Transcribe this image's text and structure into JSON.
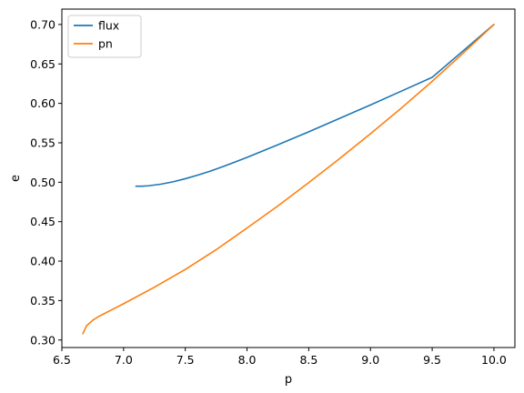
{
  "chart_data": {
    "type": "line",
    "xlabel": "p",
    "ylabel": "e",
    "xlim": [
      6.5,
      10.17
    ],
    "ylim": [
      0.2905,
      0.7195
    ],
    "xticks": [
      "6.5",
      "7.0",
      "7.5",
      "8.0",
      "8.5",
      "9.0",
      "9.5",
      "10.0"
    ],
    "xtick_values": [
      6.5,
      7.0,
      7.5,
      8.0,
      8.5,
      9.0,
      9.5,
      10.0
    ],
    "yticks": [
      "0.30",
      "0.35",
      "0.40",
      "0.45",
      "0.50",
      "0.55",
      "0.60",
      "0.65",
      "0.70"
    ],
    "ytick_values": [
      0.3,
      0.35,
      0.4,
      0.45,
      0.5,
      0.55,
      0.6,
      0.65,
      0.7
    ],
    "grid": false,
    "legend_position": "top-left",
    "series": [
      {
        "name": "flux",
        "color": "#1f77b4",
        "x": [
          7.1,
          7.15,
          7.2,
          7.3,
          7.4,
          7.5,
          7.6,
          7.7,
          7.8,
          7.9,
          8.0,
          8.25,
          8.5,
          8.75,
          9.0,
          9.25,
          9.5,
          9.75,
          10.0
        ],
        "y": [
          0.495,
          0.495,
          0.4955,
          0.4975,
          0.5005,
          0.5045,
          0.509,
          0.514,
          0.5195,
          0.5255,
          0.5315,
          0.5475,
          0.564,
          0.581,
          0.598,
          0.6155,
          0.633,
          0.6665,
          0.7
        ]
      },
      {
        "name": "pn",
        "color": "#ff7f0e",
        "x": [
          6.67,
          6.7,
          6.75,
          6.8,
          6.9,
          7.0,
          7.25,
          7.5,
          7.75,
          8.0,
          8.25,
          8.5,
          8.75,
          9.0,
          9.25,
          9.5,
          9.75,
          10.0
        ],
        "y": [
          0.308,
          0.318,
          0.325,
          0.33,
          0.338,
          0.346,
          0.367,
          0.3895,
          0.4145,
          0.442,
          0.47,
          0.4995,
          0.53,
          0.5615,
          0.594,
          0.628,
          0.6635,
          0.7
        ]
      }
    ]
  }
}
